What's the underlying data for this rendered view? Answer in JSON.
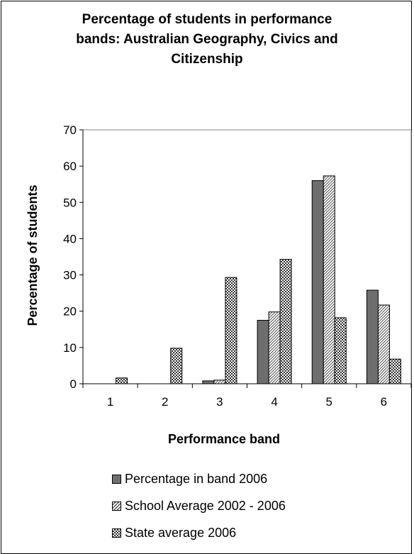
{
  "chart_data": {
    "type": "bar",
    "title": "Percentage of students in performance bands: Australian Geography, Civics and Citizenship",
    "title_lines": [
      "Percentage of students in performance",
      "bands: Australian Geography, Civics and",
      "Citizenship"
    ],
    "xlabel": "Performance band",
    "ylabel": "Percentage of students",
    "categories": [
      "1",
      "2",
      "3",
      "4",
      "5",
      "6"
    ],
    "ylim": [
      0,
      70
    ],
    "yticks": [
      0,
      10,
      20,
      30,
      40,
      50,
      60,
      70
    ],
    "grid": false,
    "legend_position": "bottom",
    "series": [
      {
        "name": "Percentage in band 2006",
        "values": [
          0,
          0,
          0.8,
          17.5,
          56,
          25.8
        ],
        "color": "#6e6e6e",
        "pattern": "solid"
      },
      {
        "name": "School Average 2002 - 2006",
        "values": [
          0,
          0,
          1.0,
          19.8,
          57.3,
          21.7
        ],
        "color": "#ffffff",
        "pattern": "diagonal"
      },
      {
        "name": "State average 2006",
        "values": [
          1.6,
          9.8,
          29.3,
          34.3,
          18.2,
          6.8
        ],
        "color": "#ffffff",
        "pattern": "checker"
      }
    ]
  }
}
